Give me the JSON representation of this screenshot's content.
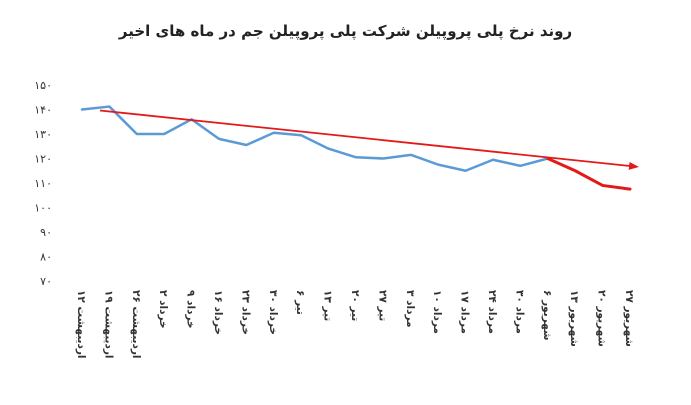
{
  "chart_data": {
    "type": "line",
    "title": "روند نرخ پلی پروپیلن شرکت پلی پروپیلن جم در ماه های اخیر",
    "xlabel": "",
    "ylabel": "",
    "ylim": [
      70,
      150
    ],
    "yticks": [
      "۷۰",
      "۸۰",
      "۹۰",
      "۱۰۰",
      "۱۱۰",
      "۱۲۰",
      "۱۳۰",
      "۱۴۰",
      "۱۵۰"
    ],
    "ytick_values": [
      70,
      80,
      90,
      100,
      110,
      120,
      130,
      140,
      150
    ],
    "categories": [
      "۱۲ اردیبهشت",
      "۱۹ اردیبهشت",
      "۲۶ اردیبهشت",
      "۲ خرداد",
      "۹ خرداد",
      "۱۶ خرداد",
      "۲۳ خرداد",
      "۳۰ خرداد",
      "۶ تیر",
      "۱۳ تیر",
      "۲۰ تیر",
      "۲۷ تیر",
      "۳ مرداد",
      "۱۰ مرداد",
      "۱۷ مرداد",
      "۲۴ مرداد",
      "۳۰ مرداد",
      "۶ شهریور",
      "۱۳ شهریور",
      "۲۰ شهریور",
      "۲۷ شهریور"
    ],
    "series": [
      {
        "values": [
          140,
          141.2,
          130,
          130,
          136,
          128,
          125.5,
          130.5,
          129.5,
          124,
          120.5,
          120,
          121.5,
          117.5,
          115,
          119.5,
          117,
          120,
          null,
          null,
          null
        ],
        "color": "#5b9bd5"
      },
      {
        "values": [
          null,
          null,
          null,
          null,
          null,
          null,
          null,
          null,
          null,
          null,
          null,
          null,
          null,
          null,
          null,
          null,
          null,
          120,
          115,
          109,
          107.5
        ],
        "color": "#e31a1a"
      }
    ],
    "trendline": {
      "from": 140,
      "to": 117.5,
      "color": "#e31a1a",
      "arrow": true
    },
    "grid": false,
    "legend": "none"
  }
}
